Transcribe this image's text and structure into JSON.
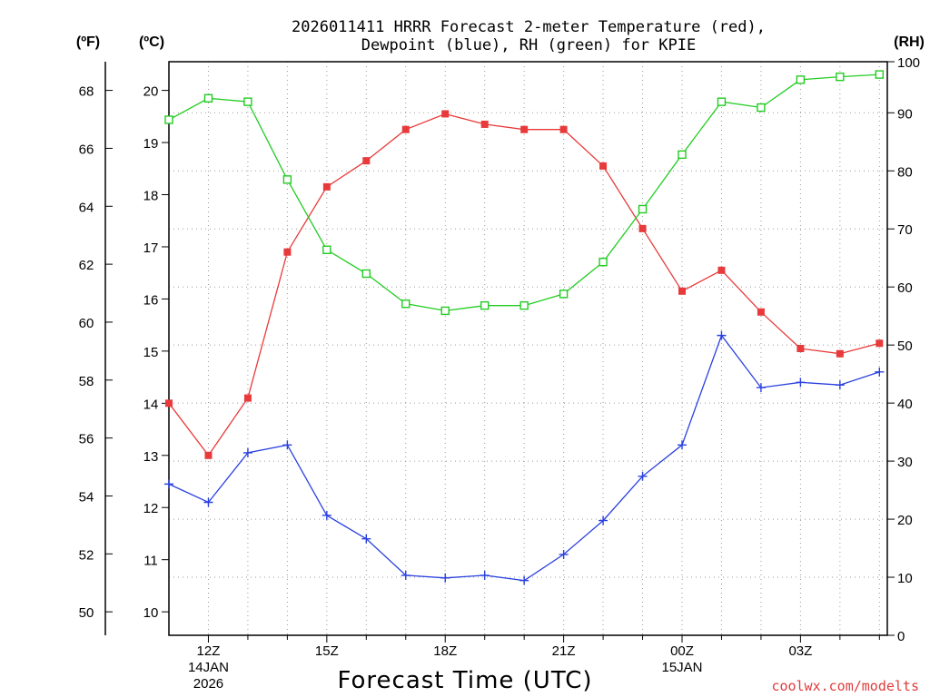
{
  "chart_data": {
    "type": "line",
    "title_lines": [
      "2026011411 HRRR Forecast 2-meter Temperature (red),",
      "Dewpoint (blue), RH (green) for KPIE"
    ],
    "xlabel": "Forecast Time (UTC)",
    "x": [
      11,
      12,
      13,
      14,
      15,
      16,
      17,
      18,
      19,
      20,
      21,
      22,
      23,
      24,
      25,
      26,
      27,
      28,
      29
    ],
    "xlim": [
      11,
      29.2
    ],
    "x_ticks": [
      {
        "x": 12,
        "lines": [
          "12Z",
          "14JAN",
          "2026"
        ]
      },
      {
        "x": 15,
        "lines": [
          "15Z"
        ]
      },
      {
        "x": 18,
        "lines": [
          "18Z"
        ]
      },
      {
        "x": 21,
        "lines": [
          "21Z"
        ]
      },
      {
        "x": 24,
        "lines": [
          "00Z",
          "15JAN"
        ]
      },
      {
        "x": 27,
        "lines": [
          "03Z"
        ]
      }
    ],
    "x_minor_ticks": [
      13,
      14,
      16,
      17,
      19,
      20,
      22,
      23,
      25,
      26,
      28,
      29
    ],
    "y_left_celsius": {
      "label": "(ºC)",
      "range": [
        9.55,
        20.55
      ],
      "ticks": [
        10,
        11,
        12,
        13,
        14,
        15,
        16,
        17,
        18,
        19,
        20
      ]
    },
    "y_left_fahrenheit": {
      "label": "(ºF)",
      "ticks": [
        50,
        52,
        54,
        56,
        58,
        60,
        62,
        64,
        66,
        68
      ]
    },
    "y_right_rh": {
      "label": "(RH)",
      "range": [
        0,
        98.8
      ],
      "ticks": [
        0,
        10,
        20,
        30,
        40,
        50,
        60,
        70,
        80,
        90,
        100
      ]
    },
    "series": [
      {
        "name": "Temperature",
        "axis": "celsius",
        "color": "#e83a3a",
        "marker": "filled-square",
        "values": [
          14.0,
          13.0,
          14.1,
          16.9,
          18.15,
          18.65,
          19.25,
          19.55,
          19.35,
          19.25,
          19.25,
          18.55,
          17.35,
          16.15,
          16.55,
          15.75,
          15.05,
          14.95,
          15.15
        ]
      },
      {
        "name": "Dewpoint",
        "axis": "celsius",
        "color": "#2a40e0",
        "marker": "plus",
        "values": [
          12.45,
          12.1,
          13.05,
          13.2,
          11.85,
          11.4,
          10.7,
          10.65,
          10.7,
          10.6,
          11.1,
          11.75,
          12.6,
          13.2,
          15.3,
          14.3,
          14.4,
          14.35,
          14.6
        ]
      },
      {
        "name": "RH",
        "axis": "rh",
        "color": "#22cc22",
        "marker": "open-square",
        "values": [
          88.8,
          92.5,
          91.9,
          78.5,
          66.4,
          62.3,
          57.1,
          55.9,
          56.8,
          56.8,
          58.8,
          64.3,
          73.4,
          82.8,
          91.9,
          90.9,
          95.7,
          96.2,
          96.6
        ]
      }
    ],
    "grid": true,
    "legend": "none (colors named in title)"
  },
  "credit": "coolwx.com/modelts"
}
